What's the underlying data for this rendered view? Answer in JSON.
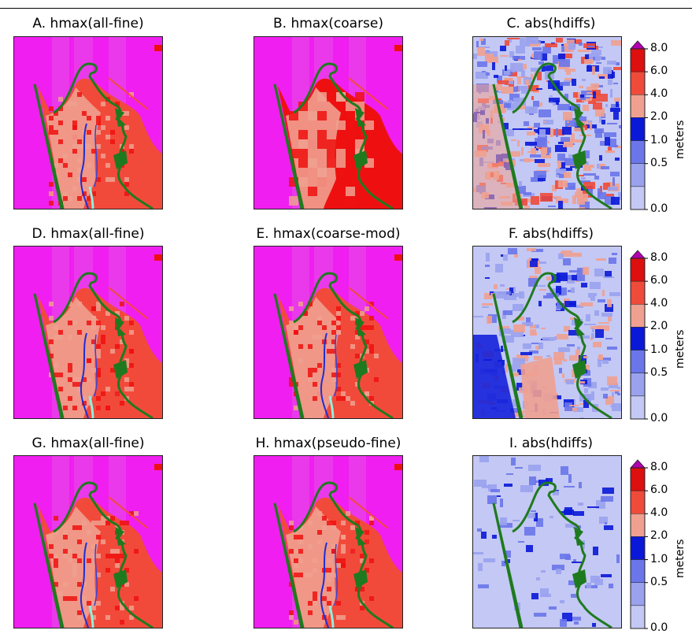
{
  "chart_data": [
    {
      "type": "heatmap",
      "title": "A. hmax(all-fine)",
      "variant": "hmax-fine"
    },
    {
      "type": "heatmap",
      "title": "B. hmax(coarse)",
      "variant": "hmax-coarse"
    },
    {
      "type": "heatmap",
      "title": "C. abs(hdiffs)",
      "variant": "diff-high",
      "colorbar": {
        "label": "meters",
        "ticks": [
          "8.0",
          "6.0",
          "4.0",
          "2.0",
          "1.0",
          "0.5",
          "0.0"
        ],
        "extend": "max"
      }
    },
    {
      "type": "heatmap",
      "title": "D. hmax(all-fine)",
      "variant": "hmax-fine"
    },
    {
      "type": "heatmap",
      "title": "E. hmax(coarse-mod)",
      "variant": "hmax-mod"
    },
    {
      "type": "heatmap",
      "title": "F. abs(hdiffs)",
      "variant": "diff-mid",
      "colorbar": {
        "label": "meters",
        "ticks": [
          "8.0",
          "6.0",
          "4.0",
          "2.0",
          "1.0",
          "0.5",
          "0.0"
        ],
        "extend": "max"
      }
    },
    {
      "type": "heatmap",
      "title": "G. hmax(all-fine)",
      "variant": "hmax-fine"
    },
    {
      "type": "heatmap",
      "title": "H. hmax(pseudo-fine)",
      "variant": "hmax-pseudo"
    },
    {
      "type": "heatmap",
      "title": "I. abs(hdiffs)",
      "variant": "diff-low",
      "colorbar": {
        "label": "meters",
        "ticks": [
          "8.0",
          "6.0",
          "4.0",
          "2.0",
          "1.0",
          "0.5",
          "0.0"
        ],
        "extend": "max"
      }
    }
  ],
  "colors": {
    "background_magenta": "#f01ef0",
    "magenta_stripe": "#e650e6",
    "deep_red": "#ee1010",
    "red": "#f24a3a",
    "salmon": "#f0a090",
    "coast_green": "#1f7a1f",
    "bar_levels": [
      "#c4c8f4",
      "#9aa2ee",
      "#6a76ea",
      "#0a18d8",
      "#f0a090",
      "#f04a3a",
      "#dd0f0f",
      "#b000b0"
    ]
  }
}
